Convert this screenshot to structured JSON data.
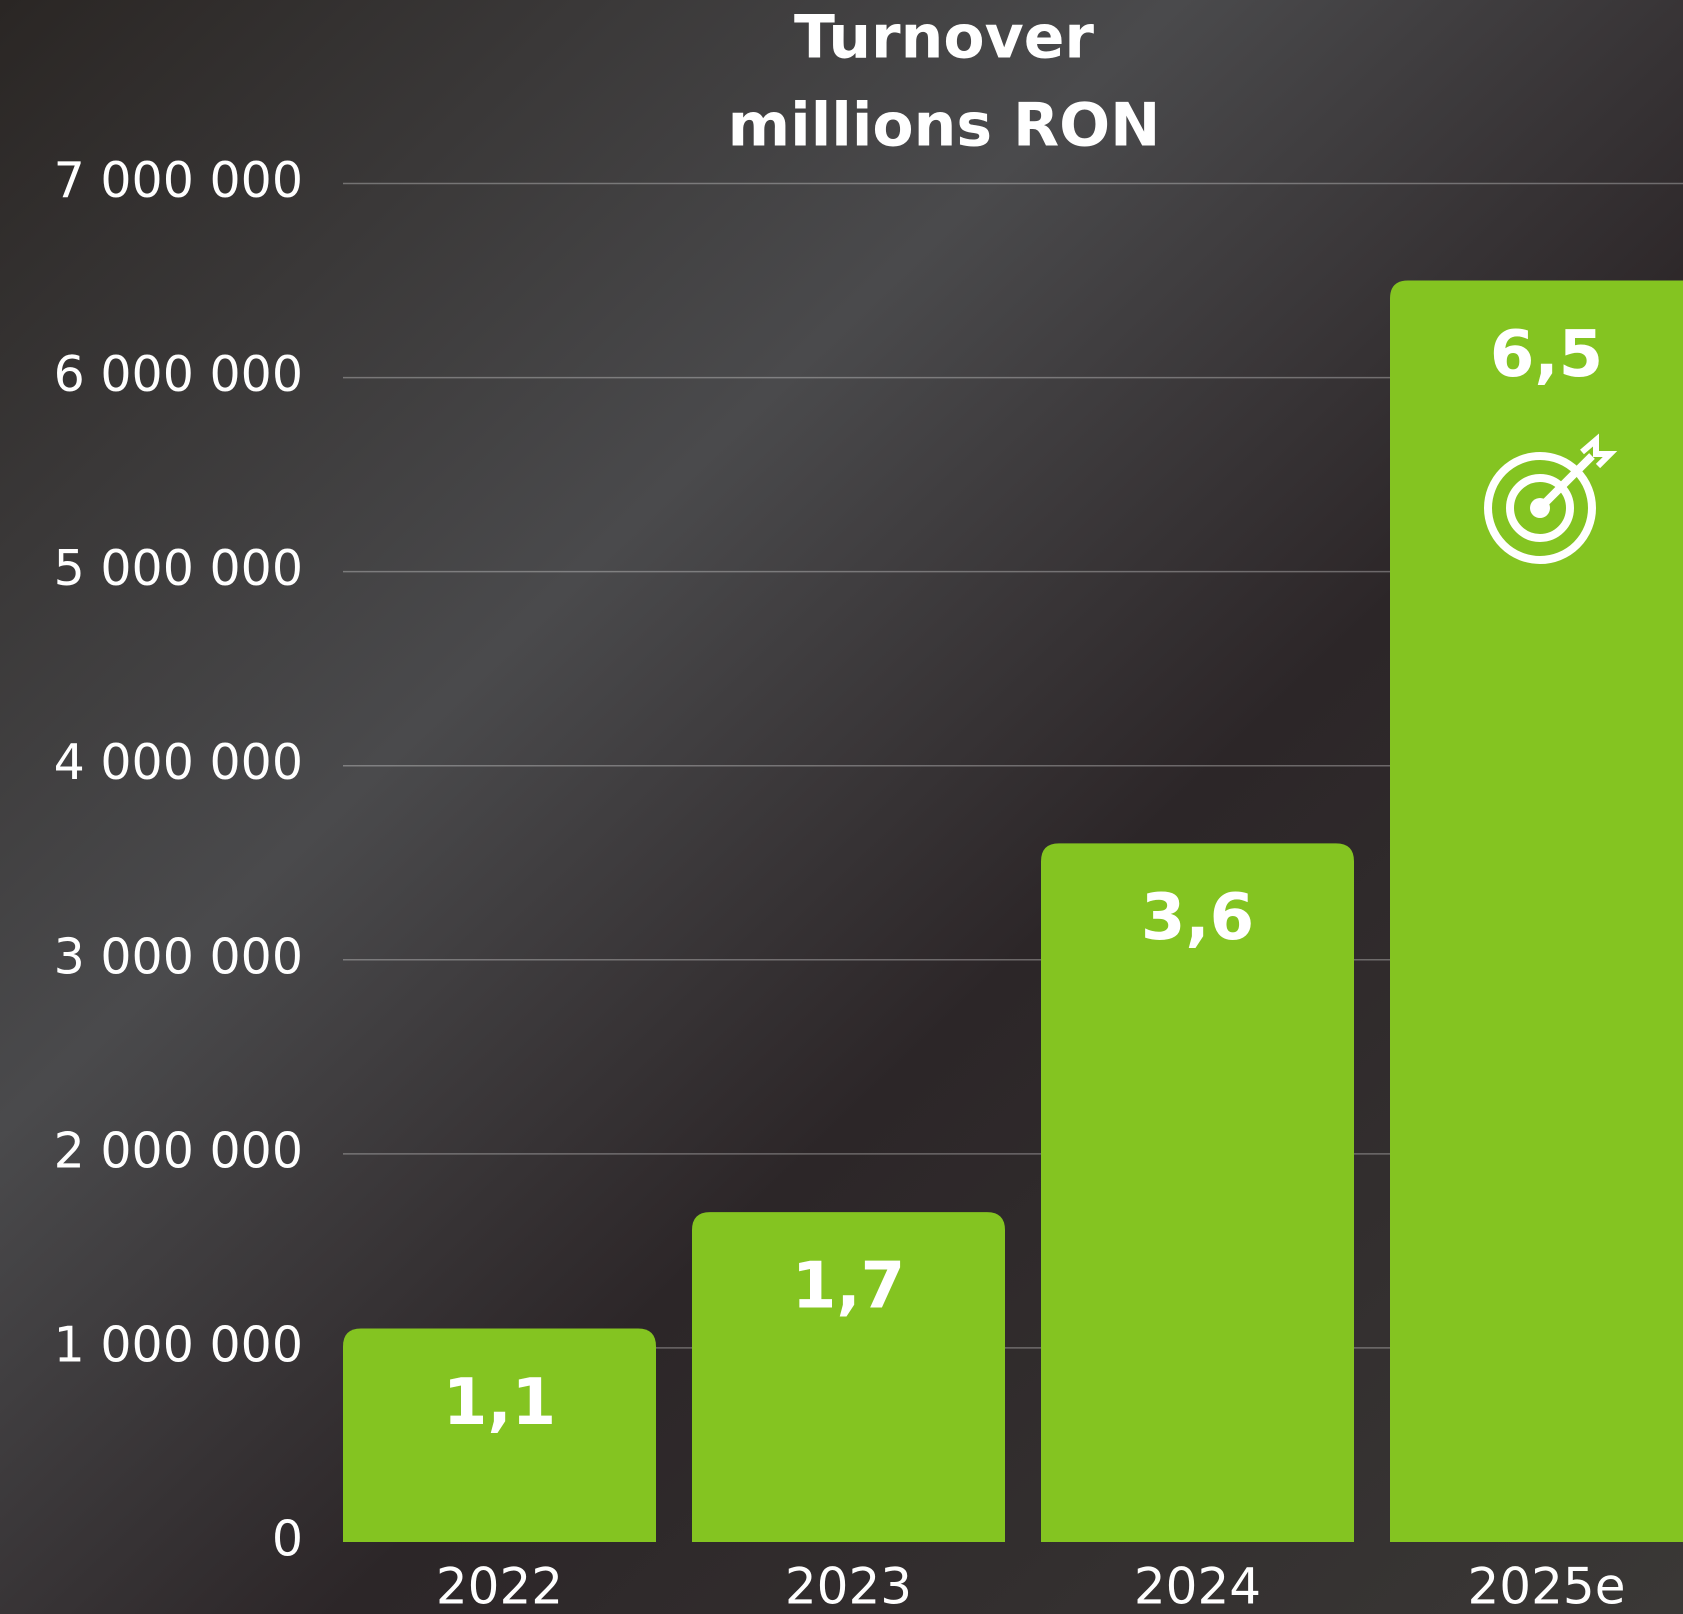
{
  "chart_data": {
    "type": "bar",
    "title": "Turnover",
    "subtitle": "millions RON",
    "categories": [
      "2022",
      "2023",
      "2024",
      "2025e"
    ],
    "values": [
      1100000,
      1700000,
      3600000,
      6500000
    ],
    "value_labels": [
      "1,1",
      "1,7",
      "3,6",
      "6,5"
    ],
    "color": "#84c421",
    "ylim": [
      0,
      7000000
    ],
    "yticks": [
      0,
      {
        "value": 1000000,
        "label": "1 000 000"
      },
      {
        "value": 2000000,
        "label": "2 000 000"
      },
      {
        "value": 3000000,
        "label": "3 000 000"
      },
      {
        "value": 4000000,
        "label": "4 000 000"
      },
      {
        "value": 5000000,
        "label": "5 000 000"
      },
      {
        "value": 6000000,
        "label": "6 000 000"
      },
      {
        "value": 7000000,
        "label": "7 000 000"
      }
    ],
    "grid": true
  }
}
